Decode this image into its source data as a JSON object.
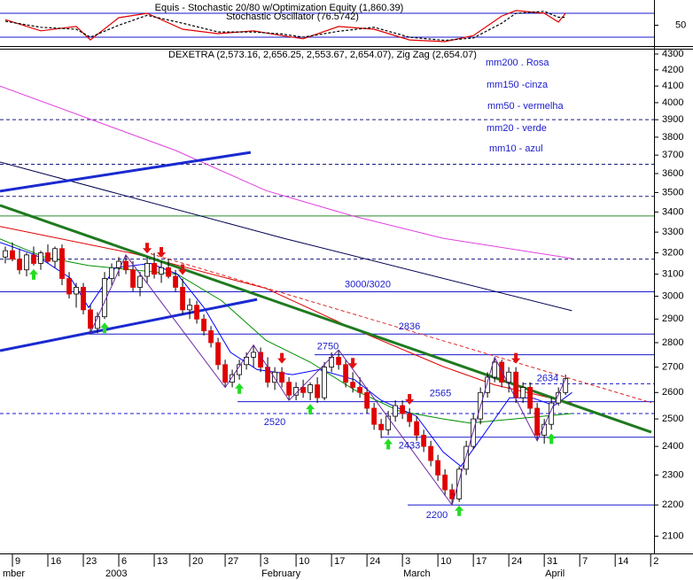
{
  "chart_data": [
    {
      "type": "line",
      "title": "Equis - Stochastic 20/80  w/Optimization Equity (1,860.39)",
      "subtitle": "Stochastic Oscillator (76.5742)",
      "xlim": [
        -0.75,
        91.1
      ],
      "ylim": [
        0,
        100
      ],
      "yticks": [
        50
      ],
      "levels": [
        20,
        80
      ],
      "level_color": "#1a1acc",
      "series": [
        {
          "color": "#e00000",
          "dashed": false,
          "x": [
            0,
            5,
            10,
            12,
            16,
            20,
            25,
            30,
            35,
            39,
            42,
            47,
            52,
            57,
            62,
            66,
            70,
            72,
            76,
            78,
            79
          ],
          "values": [
            64,
            36,
            47,
            13,
            69,
            80,
            40,
            29,
            36,
            24,
            16,
            47,
            40,
            13,
            9,
            24,
            73,
            87,
            80,
            58,
            80
          ]
        },
        {
          "color": "#000000",
          "dashed": true,
          "x": [
            0,
            5,
            10,
            12,
            16,
            20,
            25,
            30,
            35,
            39,
            42,
            47,
            52,
            57,
            62,
            66,
            70,
            72,
            76,
            78,
            79
          ],
          "values": [
            60,
            45,
            40,
            20,
            50,
            75,
            55,
            33,
            33,
            28,
            20,
            35,
            45,
            20,
            12,
            18,
            55,
            80,
            85,
            70,
            70
          ]
        }
      ]
    },
    {
      "type": "candlestick",
      "title": "DEXETRA (2,573.16, 2,656.25, 2,553.67, 2,654.07), Zig Zag (2,654.07)",
      "log_scale": true,
      "xlim": [
        -0.75,
        91.1
      ],
      "ylim": [
        2047,
        4334
      ],
      "yticks": [
        4300,
        4200,
        4100,
        4000,
        3900,
        3800,
        3700,
        3600,
        3500,
        3400,
        3300,
        3200,
        3100,
        3000,
        2900,
        2800,
        2700,
        2600,
        2500,
        2400,
        2300,
        2200,
        2100
      ],
      "xticks": [
        {
          "value": 1,
          "label": "9"
        },
        {
          "value": 6,
          "label": "16"
        },
        {
          "value": 11,
          "label": "23"
        },
        {
          "value": 16,
          "label": "6"
        },
        {
          "value": 21,
          "label": "13"
        },
        {
          "value": 26,
          "label": "20"
        },
        {
          "value": 31,
          "label": "27"
        },
        {
          "value": 36,
          "label": "3"
        },
        {
          "value": 41,
          "label": "10"
        },
        {
          "value": 46,
          "label": "17"
        },
        {
          "value": 51,
          "label": "24"
        },
        {
          "value": 56,
          "label": "3"
        },
        {
          "value": 61,
          "label": "10"
        },
        {
          "value": 66,
          "label": "17"
        },
        {
          "value": 71,
          "label": "24"
        },
        {
          "value": 76,
          "label": "31"
        },
        {
          "value": 81,
          "label": "7"
        },
        {
          "value": 86,
          "label": "14"
        },
        {
          "value": 91,
          "label": "2"
        }
      ],
      "xmonths": [
        {
          "value": -0.5,
          "label": "mber"
        },
        {
          "value": 14,
          "label": "2003"
        },
        {
          "value": 36,
          "label": "February"
        },
        {
          "value": 56,
          "label": "March"
        },
        {
          "value": 76,
          "label": "April"
        }
      ],
      "candles": {
        "up_color": "#ffffff",
        "down_color": "#e00000",
        "values": [
          [
            3180,
            3230,
            3150,
            3210
          ],
          [
            3210,
            3250,
            3160,
            3170
          ],
          [
            3170,
            3220,
            3100,
            3120
          ],
          [
            3120,
            3200,
            3090,
            3190
          ],
          [
            3190,
            3230,
            3140,
            3150
          ],
          [
            3150,
            3210,
            3120,
            3200
          ],
          [
            3200,
            3240,
            3150,
            3160
          ],
          [
            3160,
            3230,
            3130,
            3220
          ],
          [
            3220,
            3240,
            3050,
            3080
          ],
          [
            3080,
            3110,
            2990,
            3010
          ],
          [
            3010,
            3060,
            2950,
            3040
          ],
          [
            3040,
            3060,
            2920,
            2940
          ],
          [
            2940,
            2960,
            2840,
            2860
          ],
          [
            2860,
            2930,
            2840,
            2910
          ],
          [
            2910,
            3110,
            2900,
            3080
          ],
          [
            3080,
            3150,
            3050,
            3130
          ],
          [
            3130,
            3180,
            3090,
            3160
          ],
          [
            3160,
            3190,
            3100,
            3120
          ],
          [
            3120,
            3160,
            3020,
            3040
          ],
          [
            3040,
            3110,
            3000,
            3090
          ],
          [
            3090,
            3180,
            3060,
            3150
          ],
          [
            3150,
            3200,
            3080,
            3100
          ],
          [
            3100,
            3160,
            3060,
            3130
          ],
          [
            3130,
            3170,
            3080,
            3090
          ],
          [
            3090,
            3120,
            3020,
            3040
          ],
          [
            3040,
            3080,
            2920,
            2940
          ],
          [
            2940,
            2990,
            2900,
            2960
          ],
          [
            2960,
            2980,
            2880,
            2900
          ],
          [
            2900,
            2920,
            2830,
            2850
          ],
          [
            2850,
            2870,
            2780,
            2800
          ],
          [
            2800,
            2820,
            2690,
            2710
          ],
          [
            2710,
            2730,
            2620,
            2640
          ],
          [
            2640,
            2690,
            2620,
            2670
          ],
          [
            2670,
            2730,
            2650,
            2710
          ],
          [
            2710,
            2760,
            2690,
            2740
          ],
          [
            2740,
            2790,
            2700,
            2760
          ],
          [
            2760,
            2780,
            2680,
            2700
          ],
          [
            2700,
            2740,
            2620,
            2640
          ],
          [
            2640,
            2700,
            2610,
            2680
          ],
          [
            2680,
            2700,
            2620,
            2640
          ],
          [
            2640,
            2660,
            2570,
            2590
          ],
          [
            2590,
            2640,
            2570,
            2620
          ],
          [
            2620,
            2650,
            2580,
            2600
          ],
          [
            2600,
            2640,
            2570,
            2630
          ],
          [
            2630,
            2660,
            2560,
            2580
          ],
          [
            2580,
            2720,
            2570,
            2700
          ],
          [
            2700,
            2760,
            2680,
            2740
          ],
          [
            2740,
            2770,
            2690,
            2710
          ],
          [
            2710,
            2730,
            2620,
            2640
          ],
          [
            2640,
            2680,
            2600,
            2620
          ],
          [
            2620,
            2660,
            2580,
            2600
          ],
          [
            2600,
            2620,
            2520,
            2540
          ],
          [
            2540,
            2560,
            2460,
            2480
          ],
          [
            2480,
            2500,
            2430,
            2460
          ],
          [
            2460,
            2530,
            2440,
            2510
          ],
          [
            2510,
            2570,
            2490,
            2550
          ],
          [
            2550,
            2570,
            2500,
            2520
          ],
          [
            2520,
            2540,
            2470,
            2490
          ],
          [
            2490,
            2510,
            2420,
            2440
          ],
          [
            2440,
            2460,
            2380,
            2400
          ],
          [
            2400,
            2420,
            2330,
            2350
          ],
          [
            2350,
            2370,
            2280,
            2300
          ],
          [
            2300,
            2320,
            2230,
            2250
          ],
          [
            2250,
            2270,
            2200,
            2220
          ],
          [
            2220,
            2330,
            2210,
            2320
          ],
          [
            2320,
            2420,
            2300,
            2400
          ],
          [
            2400,
            2520,
            2390,
            2500
          ],
          [
            2500,
            2620,
            2480,
            2600
          ],
          [
            2600,
            2680,
            2580,
            2660
          ],
          [
            2660,
            2740,
            2640,
            2720
          ],
          [
            2720,
            2730,
            2620,
            2640
          ],
          [
            2640,
            2700,
            2600,
            2680
          ],
          [
            2680,
            2700,
            2560,
            2580
          ],
          [
            2580,
            2640,
            2560,
            2620
          ],
          [
            2620,
            2640,
            2520,
            2540
          ],
          [
            2540,
            2560,
            2420,
            2440
          ],
          [
            2440,
            2500,
            2410,
            2480
          ],
          [
            2480,
            2580,
            2460,
            2560
          ],
          [
            2560,
            2620,
            2550,
            2600
          ],
          [
            2600,
            2670,
            2590,
            2654
          ]
        ]
      },
      "series": [
        {
          "name": "mm200 . Rosa",
          "color": "#e040e0",
          "x": [
            -0.75,
            24,
            36.75,
            49,
            61.75,
            79.9
          ],
          "values": [
            4100,
            3726,
            3510,
            3380,
            3270,
            3173
          ]
        },
        {
          "name": "mm150 -cinza",
          "color": "#000050",
          "x": [
            -0.75,
            39.25,
            79.9
          ],
          "values": [
            3662,
            3270,
            2936
          ]
        },
        {
          "name": "mm50 - vermelha",
          "color": "#e00000",
          "x": [
            -0.75,
            18,
            36.75,
            49,
            61.75,
            69,
            79.9
          ],
          "values": [
            3328,
            3197,
            3035,
            2860,
            2702,
            2630,
            2560
          ]
        },
        {
          "name": "mm20 - verde",
          "color": "#009000",
          "x": [
            -0.75,
            5.5,
            11.75,
            18,
            24.25,
            30.5,
            36.75,
            43,
            49.25,
            55.5,
            61.75,
            65.5,
            71.75,
            79.9
          ],
          "values": [
            3267,
            3180,
            3140,
            3120,
            3100,
            2980,
            2810,
            2720,
            2610,
            2530,
            2500,
            2485,
            2500,
            2520
          ]
        },
        {
          "name": "mm10 - azul",
          "color": "#0000ff",
          "x": [
            -0.75,
            4.25,
            9.25,
            11.75,
            15.5,
            20.5,
            24.25,
            28,
            31.75,
            35.5,
            40.5,
            44.25,
            49.25,
            53,
            58,
            61.75,
            64.25,
            67.4,
            71.1,
            74.25,
            77.4,
            79.9
          ],
          "values": [
            3250,
            3190,
            3080,
            2950,
            3130,
            3150,
            3100,
            2950,
            2760,
            2690,
            2670,
            2690,
            2650,
            2570,
            2510,
            2380,
            2330,
            2440,
            2580,
            2580,
            2550,
            2600
          ]
        }
      ],
      "legend_color": "#1a1acc",
      "zigzag": {
        "color": "#6a2aa0",
        "x": [
          12,
          17,
          31,
          35,
          40,
          47,
          63,
          69,
          75,
          79
        ],
        "values": [
          2840,
          3190,
          2620,
          2790,
          2570,
          2770,
          2200,
          2740,
          2420,
          2654
        ]
      },
      "trendlines": [
        {
          "color": "#1a2ad0",
          "width": 3,
          "dashed": false,
          "x": [
            -0.75,
            34.6
          ],
          "values": [
            3507,
            3715
          ]
        },
        {
          "color": "#1a2ad0",
          "width": 3,
          "dashed": false,
          "x": [
            -0.75,
            35.5
          ],
          "values": [
            2767,
            2986
          ]
        },
        {
          "color": "#1f7a1f",
          "width": 3,
          "dashed": false,
          "x": [
            -0.75,
            91.1
          ],
          "values": [
            3434,
            2451
          ]
        },
        {
          "color": "#e02020",
          "width": 1,
          "dashed": true,
          "x": [
            20.5,
            91.1
          ],
          "values": [
            3196,
            2561
          ]
        }
      ],
      "hlines": [
        {
          "value": 3900,
          "color": "#1a1a80",
          "dashed": true
        },
        {
          "value": 3650,
          "color": "#1a1a80",
          "dashed": true
        },
        {
          "value": 3480,
          "color": "#1a1a80",
          "dashed": true
        },
        {
          "value": 3380,
          "color": "#2a8a2a",
          "dashed": false
        },
        {
          "value": 3170,
          "color": "#1a1a80",
          "dashed": true
        },
        {
          "value": 3020,
          "label": "3000/3020",
          "color": "#1a1acc",
          "dashed": false
        },
        {
          "value": 2836,
          "color": "#1a1acc",
          "dashed": false
        },
        {
          "value": 2750,
          "color": "#1a1acc",
          "dashed": false
        },
        {
          "value": 2634,
          "color": "#1a1acc",
          "dashed": true
        },
        {
          "value": 2565,
          "color": "#1a1acc",
          "dashed": false
        },
        {
          "value": 2520,
          "color": "#1a1acc",
          "dashed": true
        },
        {
          "value": 2433,
          "color": "#1a1acc",
          "dashed": false
        },
        {
          "value": 2200,
          "color": "#1a1acc",
          "dashed": false
        }
      ],
      "buy_signals": {
        "color": "#22dd22",
        "x": [
          4,
          14,
          33,
          43,
          54,
          64,
          77
        ]
      },
      "sell_signals": {
        "color": "#e01010",
        "x": [
          20,
          22,
          25,
          39,
          49,
          57,
          72
        ]
      }
    }
  ]
}
